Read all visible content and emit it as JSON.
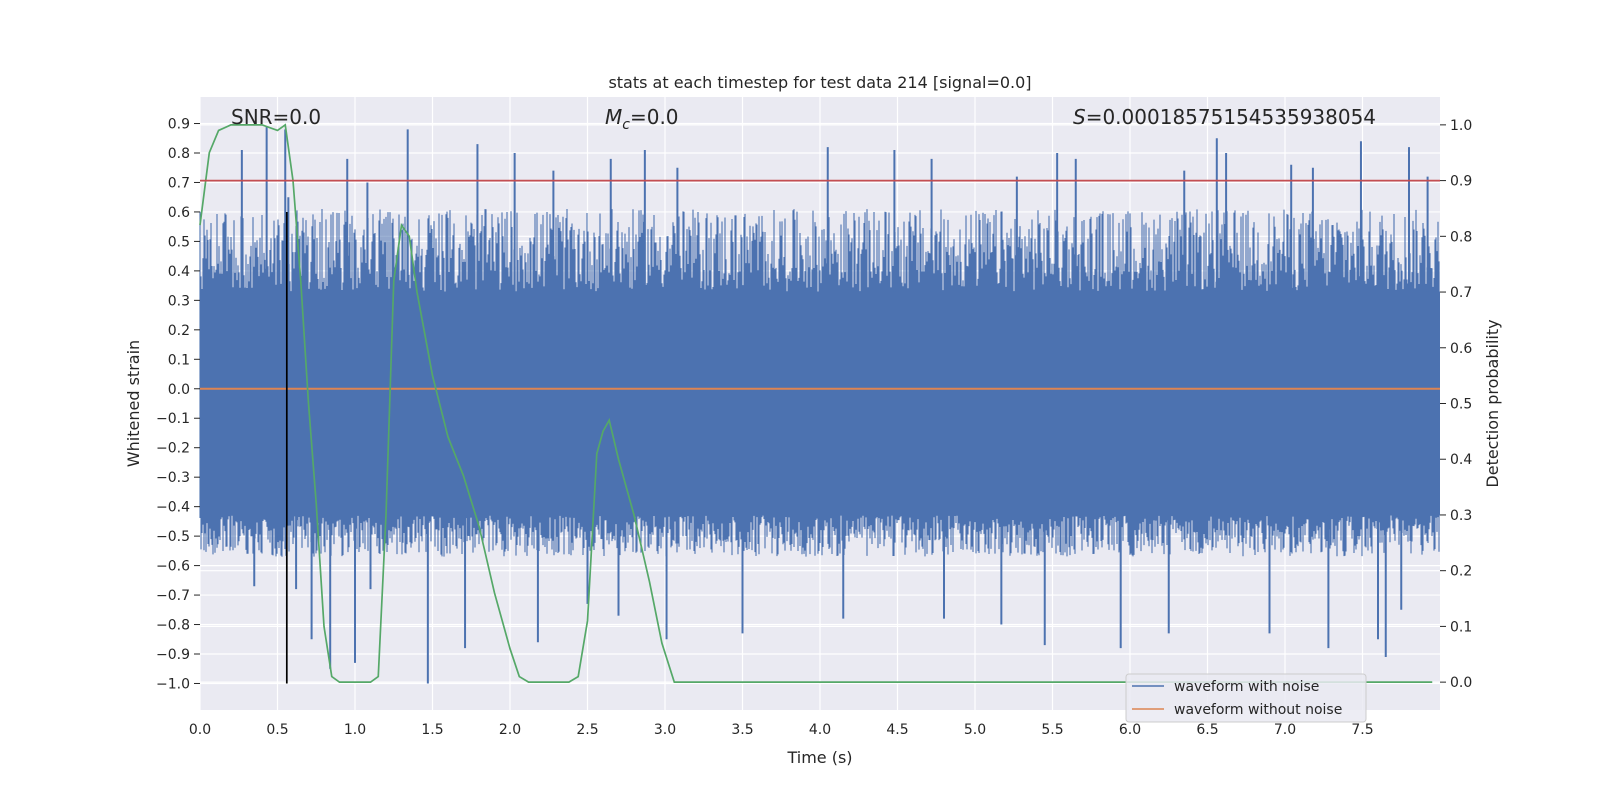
{
  "chart_data": {
    "type": "line",
    "title": "stats at each timestep for test data 214 [signal=0.0]",
    "xlabel": "Time (s)",
    "ylabel": "Whitened strain",
    "y2label": "Detection probability",
    "xlim": [
      0.0,
      8.0
    ],
    "ylim": [
      -1.09,
      0.99
    ],
    "y2lim": [
      -0.05,
      1.05
    ],
    "x_ticks": [
      "0.0",
      "0.5",
      "1.0",
      "1.5",
      "2.0",
      "2.5",
      "3.0",
      "3.5",
      "4.0",
      "4.5",
      "5.0",
      "5.5",
      "6.0",
      "6.5",
      "7.0",
      "7.5"
    ],
    "y_ticks": [
      "0.9",
      "0.8",
      "0.7",
      "0.6",
      "0.5",
      "0.4",
      "0.3",
      "0.2",
      "0.1",
      "0.0",
      "-0.1",
      "-0.2",
      "-0.3",
      "-0.4",
      "-0.5",
      "-0.6",
      "-0.7",
      "-0.8",
      "-0.9",
      "-1.0"
    ],
    "y2_ticks": [
      "1.0",
      "0.9",
      "0.8",
      "0.7",
      "0.6",
      "0.5",
      "0.4",
      "0.3",
      "0.2",
      "0.1",
      "0.0"
    ],
    "grid": true,
    "legend_position": "bottom-right",
    "annotations": {
      "snr": "SNR=0.0",
      "mc_symbol": "M",
      "mc_sub": "c",
      "mc_value": "=0.0",
      "s_symbol": "S",
      "s_value": "=0.00018575154535938054"
    },
    "series": [
      {
        "name": "waveform with noise",
        "color": "#4c72b0",
        "kind": "noise",
        "axis": "left",
        "envelope": {
          "upper": 0.33,
          "lower": -0.43
        },
        "spike_peaks_upper": [
          [
            0.03,
            0.52
          ],
          [
            0.27,
            0.81
          ],
          [
            0.43,
            0.89
          ],
          [
            0.55,
            0.88
          ],
          [
            0.57,
            0.65
          ],
          [
            0.95,
            0.78
          ],
          [
            1.08,
            0.7
          ],
          [
            1.34,
            0.88
          ],
          [
            1.79,
            0.83
          ],
          [
            2.03,
            0.8
          ],
          [
            2.28,
            0.74
          ],
          [
            2.65,
            0.78
          ],
          [
            2.87,
            0.81
          ],
          [
            3.08,
            0.75
          ],
          [
            4.05,
            0.82
          ],
          [
            4.48,
            0.81
          ],
          [
            4.72,
            0.78
          ],
          [
            5.27,
            0.72
          ],
          [
            5.53,
            0.8
          ],
          [
            5.65,
            0.78
          ],
          [
            6.35,
            0.74
          ],
          [
            6.56,
            0.85
          ],
          [
            6.62,
            0.8
          ],
          [
            7.04,
            0.76
          ],
          [
            7.18,
            0.75
          ],
          [
            7.49,
            0.84
          ],
          [
            7.8,
            0.82
          ],
          [
            7.92,
            0.72
          ]
        ],
        "spike_peaks_lower": [
          [
            0.35,
            -0.67
          ],
          [
            0.62,
            -0.68
          ],
          [
            0.72,
            -0.85
          ],
          [
            0.84,
            -0.95
          ],
          [
            1.0,
            -0.93
          ],
          [
            1.1,
            -0.68
          ],
          [
            1.47,
            -1.0
          ],
          [
            1.71,
            -0.88
          ],
          [
            2.18,
            -0.86
          ],
          [
            2.5,
            -0.73
          ],
          [
            2.7,
            -0.77
          ],
          [
            3.01,
            -0.85
          ],
          [
            3.5,
            -0.83
          ],
          [
            4.15,
            -0.78
          ],
          [
            4.8,
            -0.78
          ],
          [
            5.17,
            -0.8
          ],
          [
            5.45,
            -0.87
          ],
          [
            5.94,
            -0.88
          ],
          [
            6.25,
            -0.83
          ],
          [
            6.9,
            -0.83
          ],
          [
            7.28,
            -0.88
          ],
          [
            7.6,
            -0.85
          ],
          [
            7.65,
            -0.91
          ],
          [
            7.75,
            -0.75
          ]
        ]
      },
      {
        "name": "waveform without noise",
        "color": "#dd8452",
        "axis": "left",
        "x": [
          0.0,
          8.0
        ],
        "y": [
          0.0,
          0.0
        ]
      },
      {
        "color": "#55a868",
        "axis": "right",
        "x": [
          0.0,
          0.06,
          0.12,
          0.2,
          0.3,
          0.4,
          0.5,
          0.55,
          0.6,
          0.65,
          0.7,
          0.75,
          0.8,
          0.85,
          0.9,
          1.0,
          1.1,
          1.15,
          1.2,
          1.25,
          1.3,
          1.35,
          1.4,
          1.5,
          1.6,
          1.7,
          1.8,
          1.9,
          2.0,
          2.06,
          2.12,
          2.2,
          2.3,
          2.38,
          2.44,
          2.5,
          2.56,
          2.6,
          2.64,
          2.7,
          2.8,
          2.9,
          2.98,
          3.06,
          3.2,
          3.5,
          4.0,
          5.0,
          6.0,
          7.0,
          7.95
        ],
        "y": [
          0.82,
          0.95,
          0.99,
          1.0,
          1.0,
          1.0,
          0.99,
          1.0,
          0.9,
          0.72,
          0.5,
          0.32,
          0.1,
          0.01,
          0.0,
          0.0,
          0.0,
          0.01,
          0.3,
          0.72,
          0.82,
          0.8,
          0.7,
          0.55,
          0.44,
          0.37,
          0.28,
          0.16,
          0.06,
          0.01,
          0.0,
          0.0,
          0.0,
          0.0,
          0.01,
          0.11,
          0.41,
          0.45,
          0.47,
          0.4,
          0.3,
          0.18,
          0.07,
          0.0,
          0.0,
          0.0,
          0.0,
          0.0,
          0.0,
          0.0,
          0.0
        ]
      },
      {
        "color": "#c44e52",
        "kind": "hline",
        "axis": "right",
        "y": [
          0.9,
          0.9
        ],
        "x": [
          0.0,
          8.0
        ]
      },
      {
        "color": "#000000",
        "kind": "vline",
        "axis": "left",
        "x": [
          0.56,
          0.56
        ],
        "y": [
          -1.0,
          0.6
        ]
      }
    ]
  }
}
